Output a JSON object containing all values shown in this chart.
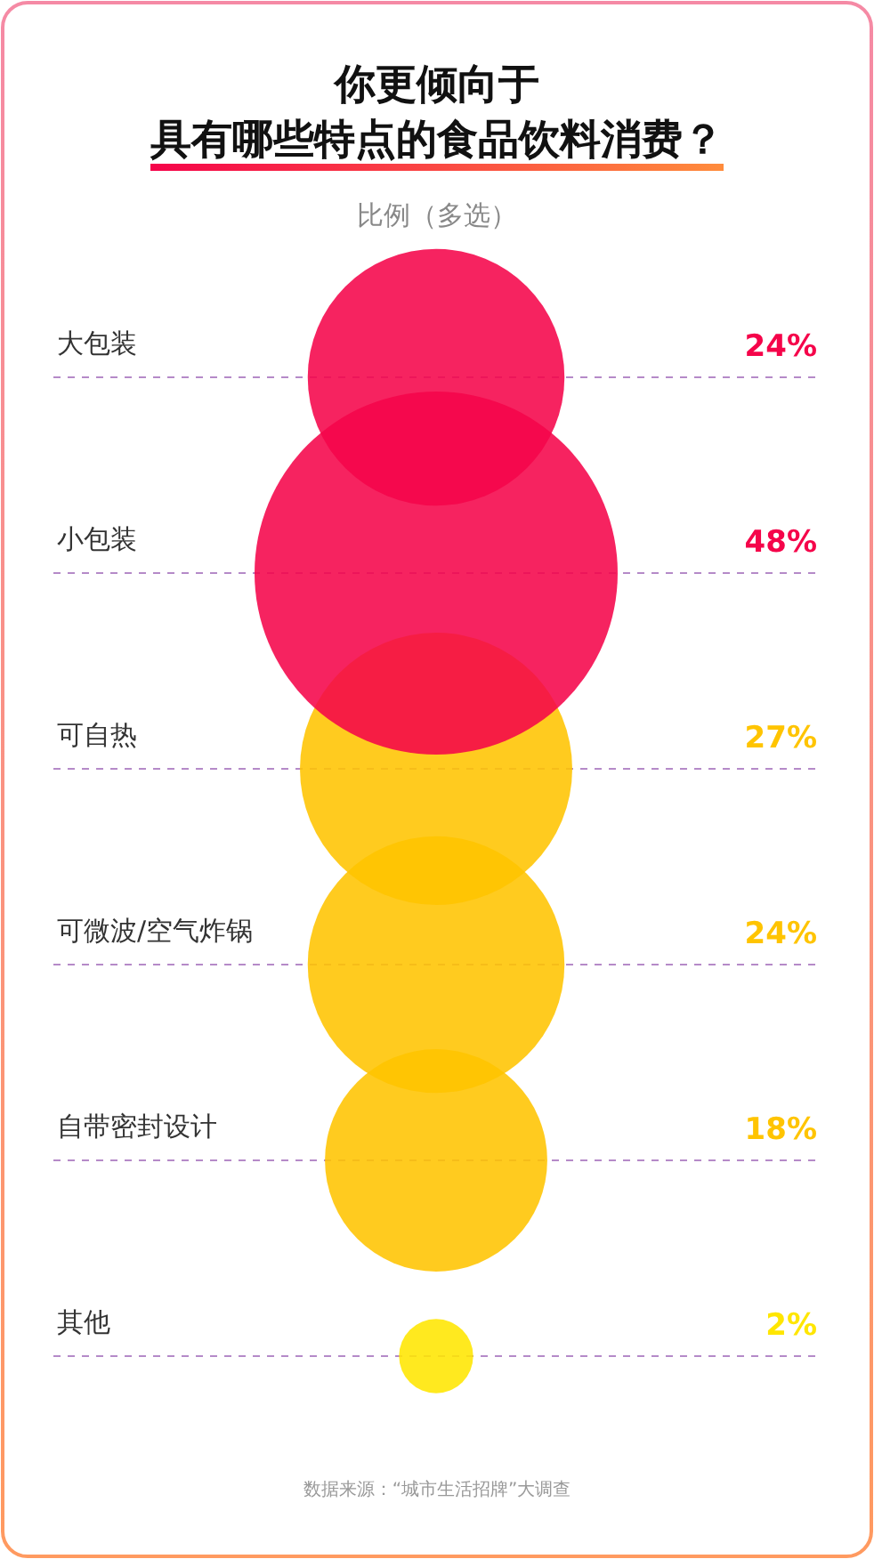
{
  "chart_data": {
    "type": "other",
    "title": "你更倾向于",
    "subtitle": "具有哪些特点的食品饮料消费？",
    "xlabel": "比例（多选）",
    "categories": [
      "大包装",
      "小包装",
      "可自热",
      "可微波/空气炸锅",
      "自带密封设计",
      "其他"
    ],
    "values": [
      24,
      48,
      27,
      24,
      18,
      2
    ],
    "value_labels": [
      "24%",
      "48%",
      "27%",
      "24%",
      "18%",
      "2%"
    ],
    "colors": [
      "#f5044a",
      "#f5044a",
      "#ffc400",
      "#ffc400",
      "#ffc400",
      "#ffe600"
    ],
    "annotations": [
      "数据来源：“城市生活招牌”大调查"
    ]
  }
}
